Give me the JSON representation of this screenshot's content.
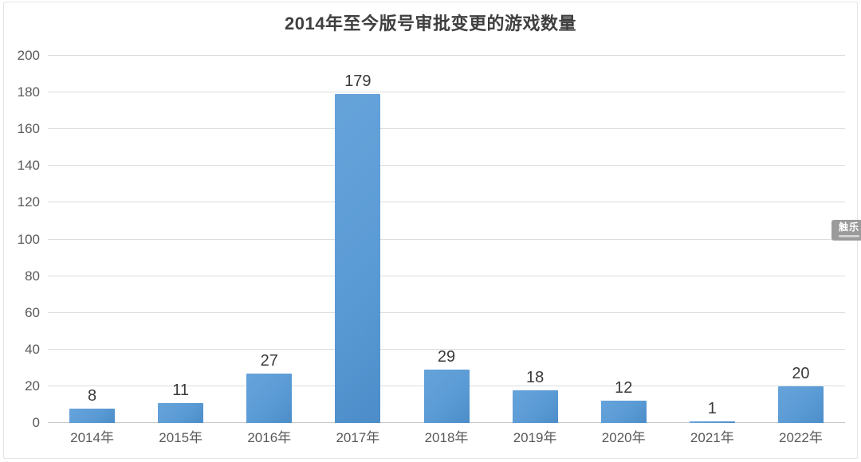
{
  "title": "2014年至今版号审批变更的游戏数量",
  "watermark": {
    "label": "触乐"
  },
  "colors": {
    "bar": "#5b9bd5",
    "bar_top": "#66a3db",
    "bar_bottom": "#4c8dc9",
    "grid": "#dcdcdc",
    "axis": "#c9c9c9",
    "frame": "#e3e3e3",
    "title_text": "#3f3f3f",
    "axis_text": "#595959",
    "value_text": "#3a3a3a",
    "watermark_bg": "#9b9b9b"
  },
  "chart_data": {
    "type": "bar",
    "categories": [
      "2014年",
      "2015年",
      "2016年",
      "2017年",
      "2018年",
      "2019年",
      "2020年",
      "2021年",
      "2022年"
    ],
    "values": [
      8,
      11,
      27,
      179,
      29,
      18,
      12,
      1,
      20
    ],
    "title": "2014年至今版号审批变更的游戏数量",
    "xlabel": "",
    "ylabel": "",
    "ylim": [
      0,
      200
    ],
    "ytick_step": 20,
    "yticks": [
      0,
      20,
      40,
      60,
      80,
      100,
      120,
      140,
      160,
      180,
      200
    ],
    "grid": true,
    "legend": false,
    "data_labels": true
  }
}
